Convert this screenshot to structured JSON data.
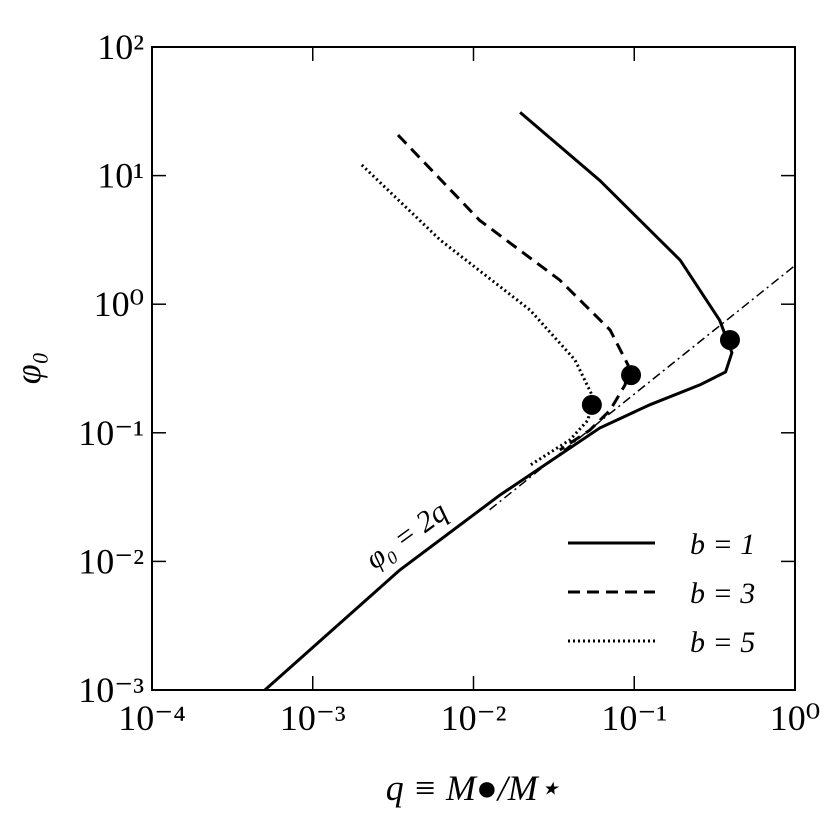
{
  "chart_data": {
    "type": "line",
    "xlabel": "q ≡ M●/M⋆",
    "ylabel": "φ₀",
    "xscale": "log",
    "yscale": "log",
    "xlim": [
      0.0001,
      1
    ],
    "ylim": [
      0.001,
      100
    ],
    "xticks": [
      {
        "value": 0.0001,
        "label": "10⁻⁴"
      },
      {
        "value": 0.001,
        "label": "10⁻³"
      },
      {
        "value": 0.01,
        "label": "10⁻²"
      },
      {
        "value": 0.1,
        "label": "10⁻¹"
      },
      {
        "value": 1,
        "label": "10⁰"
      }
    ],
    "yticks": [
      {
        "value": 0.001,
        "label": "10⁻³"
      },
      {
        "value": 0.01,
        "label": "10⁻²"
      },
      {
        "value": 0.1,
        "label": "10⁻¹"
      },
      {
        "value": 1,
        "label": "10⁰"
      },
      {
        "value": 10,
        "label": "10¹"
      },
      {
        "value": 100,
        "label": "10²"
      }
    ],
    "legend": "lower right",
    "series": [
      {
        "name": "b = 1",
        "color": "#000000",
        "style": "solid",
        "x": [
          0.0195,
          0.061,
          0.193,
          0.34,
          0.405,
          0.37,
          0.257,
          0.125,
          0.061,
          0.0146,
          0.00348,
          0.000504
        ],
        "values": [
          31,
          9.2,
          2.2,
          0.75,
          0.42,
          0.297,
          0.236,
          0.165,
          0.109,
          0.0328,
          0.00857,
          0.001
        ]
      },
      {
        "name": "b = 3",
        "color": "#000000",
        "style": "dashed",
        "x": [
          0.00339,
          0.0109,
          0.0344,
          0.0708,
          0.0916,
          0.0877,
          0.0708,
          0.053,
          0.0344
        ],
        "values": [
          20.7,
          4.5,
          1.54,
          0.63,
          0.336,
          0.236,
          0.15,
          0.105,
          0.0735
        ]
      },
      {
        "name": "b = 5",
        "color": "#000000",
        "style": "dotted",
        "x": [
          0.00202,
          0.0062,
          0.0225,
          0.0428,
          0.0545,
          0.0517,
          0.0398,
          0.0225
        ],
        "values": [
          12.1,
          3.16,
          0.9,
          0.368,
          0.197,
          0.126,
          0.088,
          0.056
        ]
      }
    ],
    "reference_line": {
      "color": "#000000",
      "style": "dashdot",
      "x": [
        0.0126,
        1
      ],
      "values": [
        0.0252,
        2
      ]
    },
    "annotation": "φ₀ = 2q",
    "markers": {
      "color": "#000000",
      "x": [
        0.394,
        0.0955,
        0.0545
      ],
      "values": [
        0.527,
        0.281,
        0.165
      ]
    }
  }
}
